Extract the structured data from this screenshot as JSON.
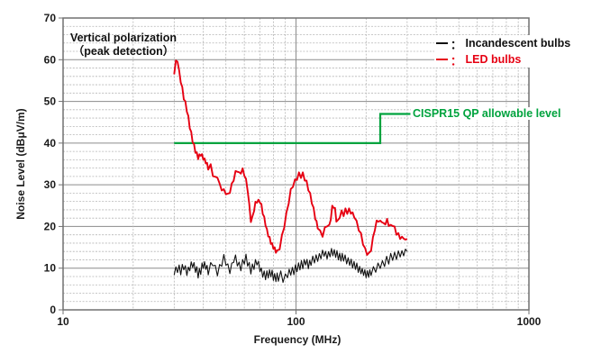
{
  "annotation": {
    "line1": "Vertical polarization",
    "line2": "（peak detection）"
  },
  "legend": {
    "separator": "：",
    "items": [
      {
        "label": "Incandescent bulbs",
        "color": "#111111"
      },
      {
        "label": "LED bulbs",
        "color": "#e60012"
      }
    ]
  },
  "limit_label": "CISPR15 QP allowable level",
  "axes": {
    "x": {
      "label": "Frequency (MHz)",
      "scale": "log",
      "min": 10,
      "max": 1000,
      "ticks": [
        {
          "value": 10,
          "text": "10"
        },
        {
          "value": 100,
          "text": "100"
        },
        {
          "value": 1000,
          "text": "1000"
        }
      ]
    },
    "y": {
      "label": "Noise Level (dBμV/m)",
      "min": 0,
      "max": 70,
      "major_step": 10,
      "minor_step": 2,
      "ticks": [
        {
          "value": 0,
          "text": "0"
        },
        {
          "value": 10,
          "text": "10"
        },
        {
          "value": 20,
          "text": "20"
        },
        {
          "value": 30,
          "text": "30"
        },
        {
          "value": 40,
          "text": "40"
        },
        {
          "value": 50,
          "text": "50"
        },
        {
          "value": 60,
          "text": "60"
        },
        {
          "value": 70,
          "text": "70"
        }
      ]
    }
  },
  "colors": {
    "incandescent": "#111111",
    "led": "#e60012",
    "limit": "#00a33e",
    "grid_minor": "#b5b5b5",
    "grid_major": "#8c8c8c",
    "frame": "#707070",
    "text": "#1a1a1a",
    "background": "#ffffff"
  },
  "chart_data": {
    "type": "line",
    "title": "Vertical polarization (peak detection)",
    "xlabel": "Frequency (MHz)",
    "ylabel": "Noise Level (dBμV/m)",
    "x_scale": "log",
    "xlim": [
      10,
      1000
    ],
    "ylim": [
      0,
      70
    ],
    "grid": "on",
    "legend_position": "top-right",
    "series": [
      {
        "name": "Incandescent bulbs",
        "color": "#111111",
        "stroke_width": 1.1,
        "noise_amplitude": 1.15,
        "points": [
          [
            30,
            9
          ],
          [
            31,
            10
          ],
          [
            32,
            9.5
          ],
          [
            33,
            10.5
          ],
          [
            34,
            9
          ],
          [
            35,
            10
          ],
          [
            36,
            11
          ],
          [
            37,
            10
          ],
          [
            38,
            8.5
          ],
          [
            39,
            9.5
          ],
          [
            40,
            11
          ],
          [
            41,
            10.5
          ],
          [
            42,
            9.5
          ],
          [
            43,
            10.5
          ],
          [
            44,
            11.5
          ],
          [
            45,
            10
          ],
          [
            46,
            9
          ],
          [
            47,
            10
          ],
          [
            48,
            11.5
          ],
          [
            49,
            12.5
          ],
          [
            50,
            11.5
          ],
          [
            51,
            10
          ],
          [
            52,
            9.5
          ],
          [
            53,
            10.5
          ],
          [
            54,
            12
          ],
          [
            55,
            12.5
          ],
          [
            56,
            11.5
          ],
          [
            57,
            10.5
          ],
          [
            58,
            10
          ],
          [
            59,
            11
          ],
          [
            60,
            12
          ],
          [
            61,
            12.5
          ],
          [
            62,
            11.5
          ],
          [
            63,
            10.5
          ],
          [
            64,
            9.5
          ],
          [
            66,
            10.5
          ],
          [
            68,
            11.5
          ],
          [
            70,
            10
          ],
          [
            72,
            8.5
          ],
          [
            74,
            8
          ],
          [
            76,
            8.5
          ],
          [
            78,
            9
          ],
          [
            80,
            8
          ],
          [
            82,
            7.5
          ],
          [
            84,
            8
          ],
          [
            86,
            8.5
          ],
          [
            88,
            7.5
          ],
          [
            90,
            8
          ],
          [
            92,
            8.5
          ],
          [
            95,
            9
          ],
          [
            98,
            9.5
          ],
          [
            101,
            10
          ],
          [
            104,
            10.5
          ],
          [
            107,
            11
          ],
          [
            110,
            11.5
          ],
          [
            113,
            11
          ],
          [
            116,
            11.5
          ],
          [
            120,
            12
          ],
          [
            124,
            12.5
          ],
          [
            128,
            13
          ],
          [
            132,
            13.5
          ],
          [
            136,
            13
          ],
          [
            140,
            13.5
          ],
          [
            144,
            14
          ],
          [
            148,
            13.5
          ],
          [
            152,
            13
          ],
          [
            156,
            12.5
          ],
          [
            160,
            12.5
          ],
          [
            165,
            12
          ],
          [
            170,
            11.5
          ],
          [
            175,
            11
          ],
          [
            180,
            10.5
          ],
          [
            185,
            10
          ],
          [
            190,
            9.5
          ],
          [
            195,
            9
          ],
          [
            200,
            8.5
          ],
          [
            205,
            8.5
          ],
          [
            210,
            9
          ],
          [
            215,
            9.5
          ],
          [
            220,
            10
          ],
          [
            225,
            10.5
          ],
          [
            230,
            11
          ],
          [
            235,
            11
          ],
          [
            240,
            11.5
          ],
          [
            245,
            12
          ],
          [
            250,
            12
          ],
          [
            255,
            12.5
          ],
          [
            260,
            12.5
          ],
          [
            265,
            13
          ],
          [
            270,
            13
          ],
          [
            275,
            13.5
          ],
          [
            280,
            13.5
          ],
          [
            285,
            13.5
          ],
          [
            290,
            14
          ],
          [
            295,
            13.5
          ],
          [
            300,
            14
          ]
        ]
      },
      {
        "name": "LED bulbs",
        "color": "#e60012",
        "stroke_width": 1.9,
        "noise_amplitude": 0.55,
        "points": [
          [
            30,
            57
          ],
          [
            30.5,
            59.5
          ],
          [
            31,
            60
          ],
          [
            31.5,
            57
          ],
          [
            32,
            55
          ],
          [
            33,
            51
          ],
          [
            34,
            48
          ],
          [
            35,
            44
          ],
          [
            36,
            40.5
          ],
          [
            37,
            38
          ],
          [
            38,
            36.5
          ],
          [
            39,
            37.5
          ],
          [
            40,
            36.5
          ],
          [
            41,
            35.5
          ],
          [
            42,
            34
          ],
          [
            43,
            34.5
          ],
          [
            44,
            32.5
          ],
          [
            45,
            31.5
          ],
          [
            46,
            32
          ],
          [
            47,
            30
          ],
          [
            48,
            29
          ],
          [
            49,
            28.5
          ],
          [
            50,
            28
          ],
          [
            51,
            27.5
          ],
          [
            52,
            28.5
          ],
          [
            53,
            30
          ],
          [
            54,
            31.5
          ],
          [
            55,
            33
          ],
          [
            56,
            33.5
          ],
          [
            57,
            32.5
          ],
          [
            58,
            33
          ],
          [
            59,
            33.5
          ],
          [
            60,
            32.5
          ],
          [
            61,
            31
          ],
          [
            62,
            29
          ],
          [
            63,
            25
          ],
          [
            64,
            21.5
          ],
          [
            65,
            22
          ],
          [
            66,
            24
          ],
          [
            67,
            25.5
          ],
          [
            68,
            26
          ],
          [
            70,
            26
          ],
          [
            71,
            25
          ],
          [
            72,
            23.5
          ],
          [
            73,
            22
          ],
          [
            74,
            20.5
          ],
          [
            75,
            19
          ],
          [
            77,
            17
          ],
          [
            79,
            15.5
          ],
          [
            81,
            14.5
          ],
          [
            83,
            13.8
          ],
          [
            85,
            15
          ],
          [
            87,
            17.5
          ],
          [
            89,
            20
          ],
          [
            91,
            23
          ],
          [
            93,
            26
          ],
          [
            95,
            28.5
          ],
          [
            97,
            30
          ],
          [
            99,
            31
          ],
          [
            101,
            31.5
          ],
          [
            103,
            32.5
          ],
          [
            105,
            32
          ],
          [
            107,
            32.5
          ],
          [
            109,
            31.5
          ],
          [
            111,
            30.5
          ],
          [
            113,
            29
          ],
          [
            115,
            27.5
          ],
          [
            117,
            26
          ],
          [
            119,
            24
          ],
          [
            121,
            22
          ],
          [
            124,
            20
          ],
          [
            127,
            18.5
          ],
          [
            130,
            18
          ],
          [
            133,
            19.5
          ],
          [
            136,
            20.5
          ],
          [
            139,
            20
          ],
          [
            141,
            22
          ],
          [
            143,
            24.5
          ],
          [
            145,
            25
          ],
          [
            147,
            24
          ],
          [
            149,
            21.5
          ],
          [
            151,
            21
          ],
          [
            154,
            22.5
          ],
          [
            157,
            23.5
          ],
          [
            160,
            23
          ],
          [
            163,
            24
          ],
          [
            166,
            23.5
          ],
          [
            169,
            24
          ],
          [
            172,
            23.5
          ],
          [
            175,
            23
          ],
          [
            178,
            22.5
          ],
          [
            182,
            21
          ],
          [
            186,
            19.5
          ],
          [
            190,
            18
          ],
          [
            194,
            16
          ],
          [
            198,
            14.5
          ],
          [
            202,
            13.5
          ],
          [
            206,
            13.2
          ],
          [
            210,
            14.5
          ],
          [
            214,
            17
          ],
          [
            218,
            19.5
          ],
          [
            222,
            21
          ],
          [
            226,
            21.5
          ],
          [
            230,
            21
          ],
          [
            234,
            21.5
          ],
          [
            238,
            20.5
          ],
          [
            242,
            21
          ],
          [
            246,
            21.5
          ],
          [
            250,
            20.5
          ],
          [
            255,
            20
          ],
          [
            260,
            20.5
          ],
          [
            265,
            19.5
          ],
          [
            270,
            18.5
          ],
          [
            275,
            18
          ],
          [
            280,
            17.5
          ],
          [
            285,
            17
          ],
          [
            290,
            17.5
          ],
          [
            295,
            16.5
          ],
          [
            300,
            17
          ]
        ]
      }
    ],
    "limit_line": {
      "name": "CISPR15 QP allowable level",
      "color": "#00a33e",
      "stroke_width": 2.2,
      "points": [
        [
          30,
          40
        ],
        [
          230,
          40
        ],
        [
          230,
          47
        ],
        [
          310,
          47
        ]
      ]
    }
  }
}
